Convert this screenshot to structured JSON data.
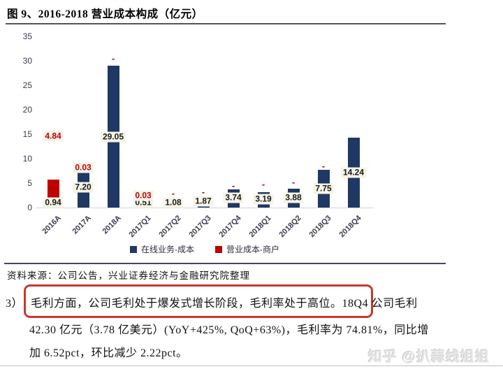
{
  "title": "图 9、2016-2018 营业成本构成（亿元）",
  "source_note": "资料来源：公司公告，兴业证券经济与金融研究院整理",
  "watermark": "知乎 @扒蒜线姐姐",
  "paragraph": {
    "prefix": "3）",
    "highlight": "毛利方面，公司毛利处于爆发式增长阶段，毛利率处于高位。",
    "line1_rest": "18Q4 公司毛利",
    "line2": "42.30 亿元（3.78 亿美元）(YoY+425%, QoQ+63%)，毛利率为 74.81%，同比增",
    "line3": "加 6.52pct，环比减少 2.22pct。"
  },
  "chart_data": {
    "type": "bar",
    "stacked": true,
    "title": "2016-2018 营业成本构成（亿元）",
    "categories": [
      "2016A",
      "2017A",
      "2018A",
      "2017Q1",
      "2017Q2",
      "2017Q3",
      "2017Q4",
      "2018Q1",
      "2018Q2",
      "2018Q3",
      "2018Q4"
    ],
    "series": [
      {
        "name": "在线业务-成本",
        "color": "#1f3864",
        "values": [
          0.94,
          7.2,
          29.05,
          0.51,
          1.08,
          1.87,
          3.74,
          3.19,
          3.88,
          7.75,
          14.24
        ]
      },
      {
        "name": "营业成本-商户",
        "color": "#c00000",
        "values": [
          4.84,
          0.03,
          0,
          0.03,
          0,
          0,
          0,
          0,
          0,
          0,
          0
        ]
      }
    ],
    "blue_labels": [
      "0.94",
      "7.20",
      "29.05",
      "0.51",
      "1.08",
      "1.87",
      "3.74",
      "3.19",
      "3.88",
      "7.75",
      "14.24"
    ],
    "blue_label_levels": [
      1.0,
      4.1,
      14.4,
      1.0,
      1.0,
      1.3,
      2.0,
      1.7,
      2.0,
      3.9,
      7.1
    ],
    "red_labels": [
      "4.84",
      "0.03",
      "-",
      "0.03",
      "-",
      "-",
      "-",
      "-",
      "-",
      "-",
      ""
    ],
    "red_label_levels": [
      14.6,
      8.2,
      30.5,
      2.4,
      2.8,
      3.1,
      4.5,
      4.7,
      5.2,
      8.5,
      null
    ],
    "ylim": [
      0,
      35
    ],
    "yticks": [
      0,
      5,
      10,
      15,
      20,
      25,
      30,
      35
    ],
    "xlabel": "",
    "ylabel": "",
    "grid": false,
    "legend_position": "bottom"
  },
  "colors": {
    "bar_blue": "#1f3864",
    "bar_red": "#c00000",
    "label_bg": "#f6f3e7",
    "highlight_box": "#c53a2c"
  }
}
